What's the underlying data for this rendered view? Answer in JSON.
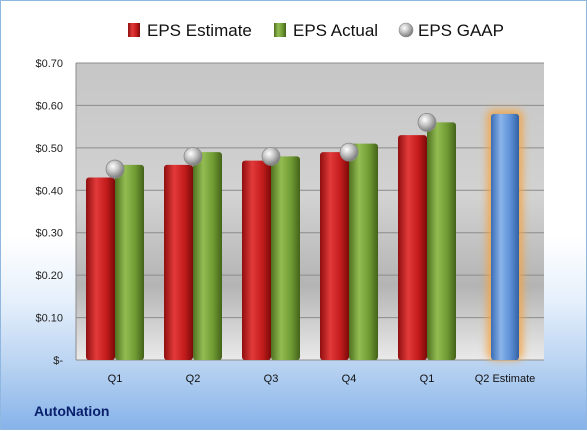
{
  "chart_data": {
    "type": "bar",
    "categories": [
      "Q1",
      "Q2",
      "Q3",
      "Q4",
      "Q1",
      "Q2 Estimate"
    ],
    "series": [
      {
        "name": "EPS Estimate",
        "values": [
          0.43,
          0.46,
          0.47,
          0.49,
          0.53,
          null
        ],
        "color": "#cc1f1f"
      },
      {
        "name": "EPS Actual",
        "values": [
          0.46,
          0.49,
          0.48,
          0.51,
          0.56,
          null
        ],
        "color": "#6f9a33"
      },
      {
        "name": "EPS GAAP",
        "values": [
          0.45,
          0.48,
          0.48,
          0.49,
          0.56,
          null
        ],
        "color": "#b8b8b8"
      }
    ],
    "forecast": {
      "category": "Q2 Estimate",
      "value": 0.58,
      "color": "#5b8fd6",
      "glow": "#f4a442"
    },
    "ylim": [
      0,
      0.7
    ],
    "yticks": [
      0,
      0.1,
      0.2,
      0.3,
      0.4,
      0.5,
      0.6,
      0.7
    ],
    "ytick_labels": [
      "$-",
      "$0.10",
      "$0.20",
      "$0.30",
      "$0.40",
      "$0.50",
      "$0.60",
      "$0.70"
    ],
    "grid": true,
    "legend": "top-center"
  },
  "brand": "AutoNation"
}
